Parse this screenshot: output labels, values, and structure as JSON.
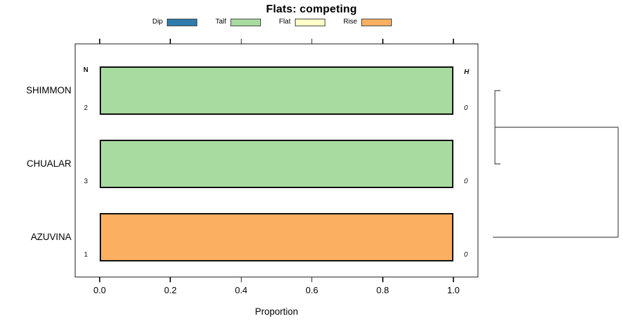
{
  "chart_data": {
    "type": "bar",
    "orientation": "horizontal",
    "title": "Flats: competing",
    "xlabel": "Proportion",
    "xlim": [
      0.0,
      1.0
    ],
    "x_ticks": [
      0.0,
      0.2,
      0.4,
      0.6,
      0.8,
      1.0
    ],
    "x_tick_labels": [
      "0.0",
      "0.2",
      "0.4",
      "0.6",
      "0.8",
      "1.0"
    ],
    "left_header": "N",
    "right_header": "H",
    "legend": {
      "position": "top",
      "entries": [
        {
          "label": "Dip",
          "color": "#2f7bac"
        },
        {
          "label": "Talf",
          "color": "#a8dba0"
        },
        {
          "label": "Flat",
          "color": "#ffffc8"
        },
        {
          "label": "Rise",
          "color": "#fbaf60"
        }
      ]
    },
    "rows": [
      {
        "category": "SHIMMON",
        "n": "2",
        "h": "0",
        "segments": [
          {
            "state": "Talf",
            "value": 1.0,
            "color": "#a8dba0"
          }
        ]
      },
      {
        "category": "CHUALAR",
        "n": "3",
        "h": "0",
        "segments": [
          {
            "state": "Talf",
            "value": 1.0,
            "color": "#a8dba0"
          }
        ]
      },
      {
        "category": "AZUVINA",
        "n": "1",
        "h": "0",
        "segments": [
          {
            "state": "Rise",
            "value": 1.0,
            "color": "#fbaf60"
          }
        ]
      }
    ],
    "dendrogram": {
      "side": "right",
      "joins": [
        {
          "members": [
            "SHIMMON",
            "CHUALAR"
          ]
        },
        {
          "members": [
            "SHIMMON+CHUALAR",
            "AZUVINA"
          ]
        }
      ],
      "line_color": "#4d4d4d"
    },
    "style": {
      "bar_border_color": "#0f0f0f",
      "box_border_color": "#262626",
      "tick_color": "#333333",
      "background": "#ffffff"
    }
  }
}
